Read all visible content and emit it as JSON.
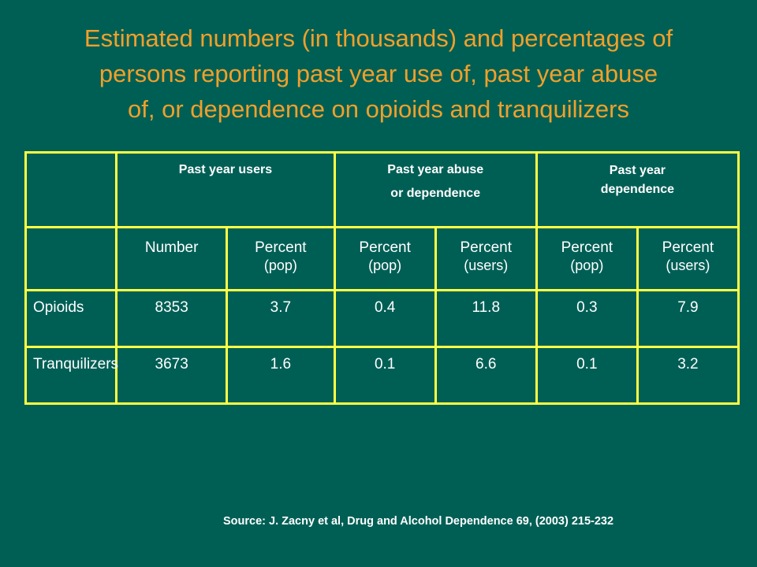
{
  "title": {
    "line1": "Estimated numbers (in thousands) and percentages of",
    "line2": "persons reporting past year use of, past year abuse",
    "line3": "of, or dependence on opioids and tranquilizers"
  },
  "table": {
    "groups": {
      "users": "Past year users",
      "abuse_line1": "Past year abuse",
      "abuse_line2": "or dependence",
      "dependence_line1": "Past year",
      "dependence_line2": "dependence"
    },
    "columns": [
      {
        "line1": "Number",
        "line2": ""
      },
      {
        "line1": "Percent",
        "line2": "(pop)"
      },
      {
        "line1": "Percent",
        "line2": "(pop)"
      },
      {
        "line1": "Percent",
        "line2": "(users)"
      },
      {
        "line1": "Percent",
        "line2": "(pop)"
      },
      {
        "line1": "Percent",
        "line2": "(users)"
      }
    ],
    "rows": [
      {
        "label": "Opioids",
        "values": [
          "8353",
          "3.7",
          "0.4",
          "11.8",
          "0.3",
          "7.9"
        ]
      },
      {
        "label": "Tranquilizers",
        "values": [
          "3673",
          "1.6",
          "0.1",
          "6.6",
          "0.1",
          "3.2"
        ]
      }
    ]
  },
  "source": "Source: J. Zacny et al,  Drug and Alcohol Dependence 69, (2003) 215-232",
  "colors": {
    "background": "#005f55",
    "title": "#f0a02a",
    "table_border": "#ffff44",
    "text": "#ffffff"
  }
}
